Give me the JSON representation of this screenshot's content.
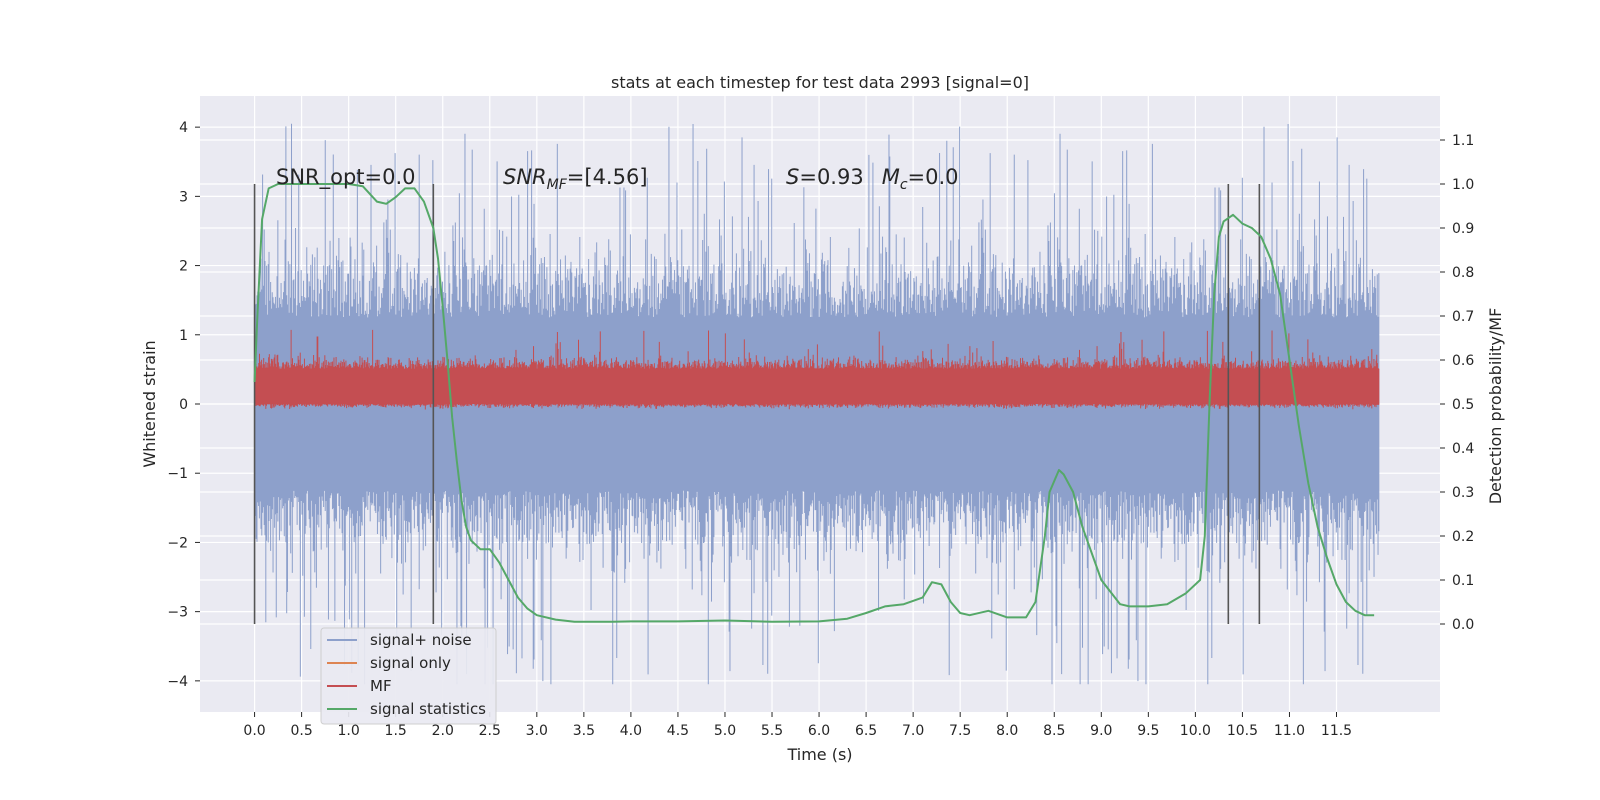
{
  "chart_data": {
    "type": "line",
    "title": "stats at each timestep for test data 2993 [signal=0]",
    "xlabel": "Time (s)",
    "ylabel_left": "Whitened strain",
    "ylabel_right": "Detection probability/MF",
    "xlim": [
      -0.58,
      12.6
    ],
    "ylim_left": [
      -4.45,
      4.45
    ],
    "ylim_right": [
      -0.2,
      1.2
    ],
    "x_ticks": [
      0.0,
      0.5,
      1.0,
      1.5,
      2.0,
      2.5,
      3.0,
      3.5,
      4.0,
      4.5,
      5.0,
      5.5,
      6.0,
      6.5,
      7.0,
      7.5,
      8.0,
      8.5,
      9.0,
      9.5,
      10.0,
      10.5,
      11.0,
      11.5
    ],
    "x_tick_labels": [
      "0.0",
      "0.5",
      "1.0",
      "1.5",
      "2.0",
      "2.5",
      "3.0",
      "3.5",
      "4.0",
      "4.5",
      "5.0",
      "5.5",
      "6.0",
      "6.5",
      "7.0",
      "7.5",
      "8.0",
      "8.5",
      "9.0",
      "9.5",
      "10.0",
      "10.5",
      "11.0",
      "11.5"
    ],
    "y_left_ticks": [
      -4,
      -3,
      -2,
      -1,
      0,
      1,
      2,
      3,
      4
    ],
    "y_left_tick_labels": [
      "−4",
      "−3",
      "−2",
      "−1",
      "0",
      "1",
      "2",
      "3",
      "4"
    ],
    "y_right_ticks": [
      0.0,
      0.1,
      0.2,
      0.3,
      0.4,
      0.5,
      0.6,
      0.7,
      0.8,
      0.9,
      1.0,
      1.1
    ],
    "y_right_tick_labels": [
      "0.0",
      "0.1",
      "0.2",
      "0.3",
      "0.4",
      "0.5",
      "0.6",
      "0.7",
      "0.8",
      "0.9",
      "1.0",
      "1.1"
    ],
    "grid": true,
    "legend_position": "lower-left",
    "series": [
      {
        "name": "signal+ noise",
        "color": "#8da0cb",
        "axis": "left",
        "kind": "noise",
        "x_range": [
          0.0,
          11.95
        ],
        "core_amplitude": 1.25,
        "peak_amplitude_max": 4.05,
        "peak_amplitude_min": -4.05
      },
      {
        "name": "signal only",
        "color": "#dd8452",
        "axis": "left",
        "kind": "flat",
        "values": []
      },
      {
        "name": "MF",
        "color": "#c44e52",
        "axis": "right",
        "kind": "band",
        "x_range": [
          0.0,
          11.95
        ],
        "band_low": 0.5,
        "band_high": 0.58,
        "spike_max": 0.67
      },
      {
        "name": "signal statistics",
        "color": "#55a868",
        "axis": "right",
        "kind": "line",
        "x": [
          0.0,
          0.03,
          0.08,
          0.15,
          0.25,
          0.4,
          0.6,
          0.8,
          1.0,
          1.15,
          1.3,
          1.4,
          1.5,
          1.6,
          1.7,
          1.8,
          1.9,
          1.95,
          2.0,
          2.05,
          2.1,
          2.15,
          2.2,
          2.25,
          2.3,
          2.4,
          2.5,
          2.6,
          2.7,
          2.8,
          2.9,
          3.0,
          3.2,
          3.4,
          3.6,
          3.8,
          4.0,
          4.5,
          5.0,
          5.5,
          6.0,
          6.3,
          6.5,
          6.7,
          6.9,
          7.1,
          7.2,
          7.3,
          7.4,
          7.5,
          7.6,
          7.8,
          8.0,
          8.2,
          8.3,
          8.4,
          8.45,
          8.55,
          8.6,
          8.7,
          8.8,
          9.0,
          9.2,
          9.3,
          9.5,
          9.7,
          9.9,
          10.05,
          10.1,
          10.15,
          10.2,
          10.25,
          10.3,
          10.4,
          10.45,
          10.5,
          10.6,
          10.7,
          10.8,
          10.9,
          11.0,
          11.1,
          11.2,
          11.3,
          11.4,
          11.5,
          11.6,
          11.7,
          11.8,
          11.9
        ],
        "y": [
          0.55,
          0.7,
          0.92,
          0.99,
          1.0,
          1.0,
          1.0,
          1.0,
          1.0,
          0.995,
          0.96,
          0.955,
          0.97,
          0.99,
          0.99,
          0.96,
          0.9,
          0.83,
          0.72,
          0.6,
          0.47,
          0.37,
          0.28,
          0.22,
          0.19,
          0.17,
          0.17,
          0.14,
          0.1,
          0.06,
          0.035,
          0.02,
          0.01,
          0.005,
          0.005,
          0.005,
          0.006,
          0.006,
          0.008,
          0.005,
          0.006,
          0.012,
          0.025,
          0.04,
          0.045,
          0.06,
          0.095,
          0.09,
          0.05,
          0.025,
          0.02,
          0.03,
          0.015,
          0.015,
          0.05,
          0.2,
          0.3,
          0.35,
          0.34,
          0.3,
          0.22,
          0.1,
          0.045,
          0.04,
          0.04,
          0.045,
          0.07,
          0.1,
          0.2,
          0.5,
          0.75,
          0.88,
          0.915,
          0.93,
          0.92,
          0.91,
          0.9,
          0.88,
          0.83,
          0.75,
          0.6,
          0.45,
          0.32,
          0.22,
          0.15,
          0.09,
          0.05,
          0.03,
          0.02,
          0.02
        ]
      }
    ],
    "vertical_markers": [
      {
        "x": 0.0,
        "ymin_right": 0.0,
        "ymax_right": 1.0
      },
      {
        "x": 1.9,
        "ymin_right": 0.0,
        "ymax_right": 1.0
      },
      {
        "x": 10.35,
        "ymin_right": 0.0,
        "ymax_right": 1.0
      },
      {
        "x": 10.68,
        "ymin_right": 0.0,
        "ymax_right": 1.0
      }
    ],
    "annotations": [
      {
        "id": "snr_opt",
        "text": "SNR_opt=0.0",
        "x": 0.2,
        "y_right": 1.0
      },
      {
        "id": "snr_mf",
        "text": "SNRMF=[4.56]",
        "x": 2.6,
        "y_right": 1.0
      },
      {
        "id": "stats",
        "text": "S=0.93   Mc=0.0",
        "x": 5.6,
        "y_right": 1.0
      }
    ]
  },
  "annotation_parts": {
    "snr_opt": "SNR_opt=0.0",
    "snr_mf_prefix": "SNR",
    "snr_mf_sub": "MF",
    "snr_mf_suffix": "=[4.56]",
    "stats_s": "S",
    "stats_s_value": "=0.93",
    "stats_m": "M",
    "stats_m_sub": "c",
    "stats_m_value": "=0.0"
  },
  "legend": {
    "items": [
      {
        "label": "signal+ noise",
        "color": "#8da0cb"
      },
      {
        "label": "signal only",
        "color": "#dd8452"
      },
      {
        "label": "MF",
        "color": "#c44e52"
      },
      {
        "label": "signal statistics",
        "color": "#55a868"
      }
    ]
  },
  "colors": {
    "background": "#eaeaf2",
    "grid": "#ffffff",
    "marker": "#555555"
  }
}
